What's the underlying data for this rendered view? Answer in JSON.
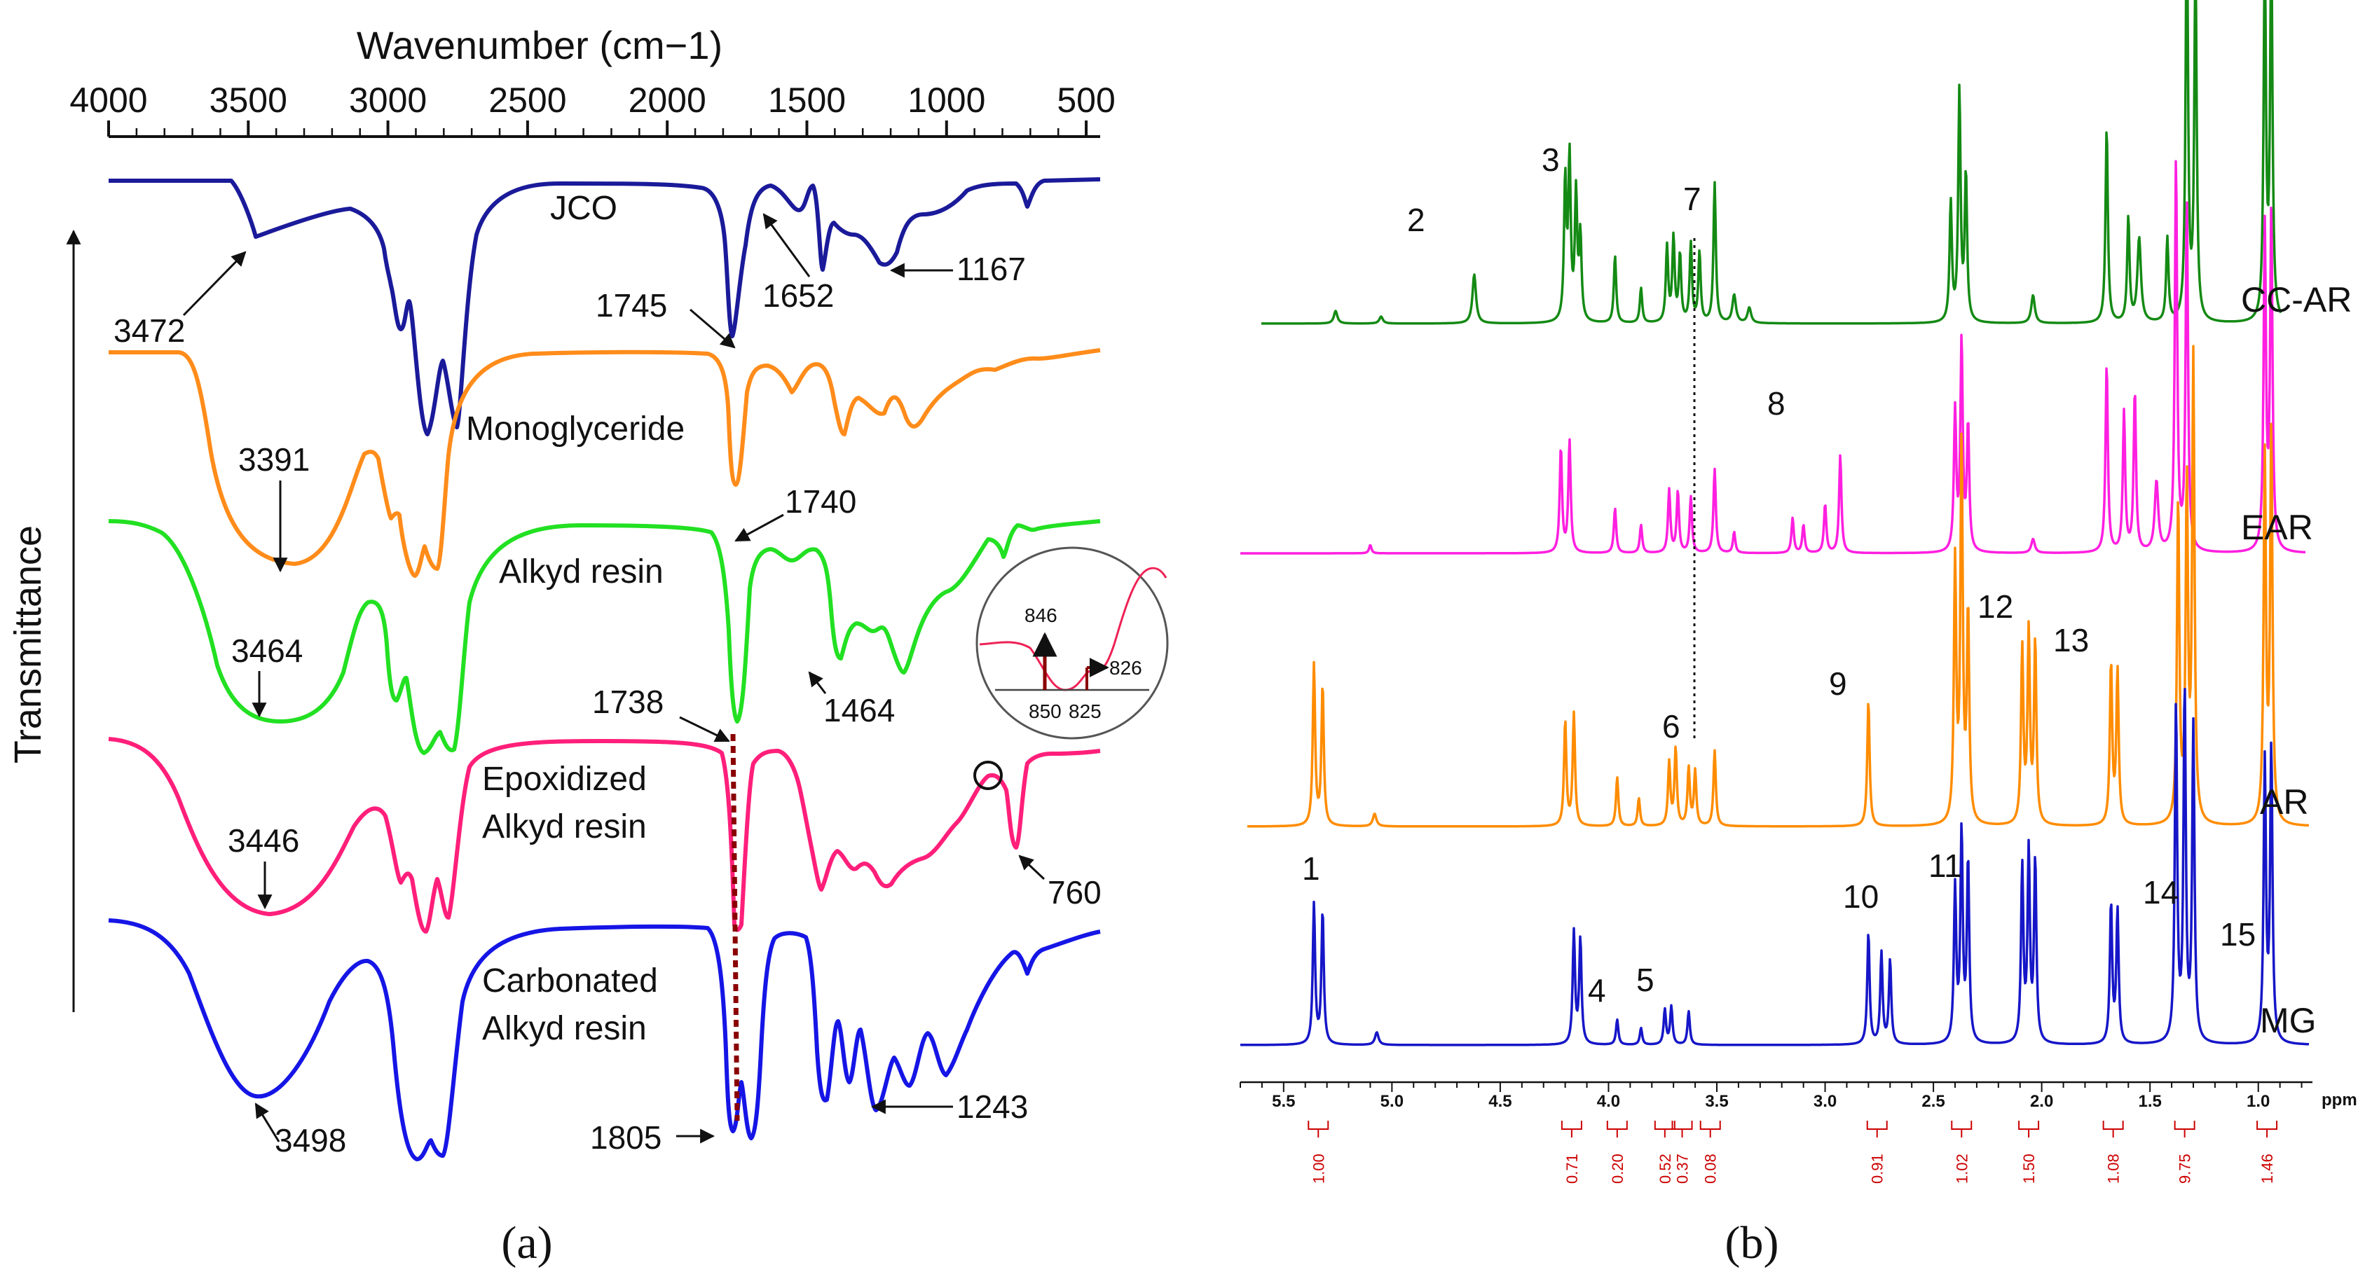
{
  "panel_labels": {
    "a": "(a)",
    "b": "(b)"
  },
  "chart_data": [
    {
      "type": "line",
      "title": "",
      "xlabel": "Wavenumber (cm−1)",
      "ylabel": "Transmittance",
      "xlim": [
        4000,
        450
      ],
      "x_reversed": true,
      "xticks": [
        "4000",
        "3500",
        "3000",
        "2500",
        "2000",
        "1500",
        "1000",
        "500"
      ],
      "series": [
        {
          "name": "JCO",
          "color": "#1a1a9a",
          "label_lines": [
            "JCO"
          ]
        },
        {
          "name": "Monoglyceride",
          "color": "#ff8c1a",
          "label_lines": [
            "Monoglyceride"
          ]
        },
        {
          "name": "Alkyd resin",
          "color": "#22e022",
          "label_lines": [
            "Alkyd resin"
          ]
        },
        {
          "name": "Epoxidized Alkyd resin",
          "color": "#ff1f7a",
          "label_lines": [
            "Epoxidized",
            "Alkyd resin"
          ]
        },
        {
          "name": "Carbonated Alkyd resin",
          "color": "#1515e6",
          "label_lines": [
            "Carbonated",
            "Alkyd resin"
          ]
        }
      ],
      "annotations": [
        "3472",
        "1745",
        "1652",
        "1167",
        "3391",
        "1740",
        "3464",
        "1464",
        "1738",
        "3446",
        "760",
        "3498",
        "1805",
        "1243"
      ],
      "inset": {
        "peak": "846",
        "shoulder": "826",
        "ticks": [
          "850",
          "825"
        ]
      }
    },
    {
      "type": "line",
      "title": "",
      "xlabel": "ppm",
      "xlim": [
        5.7,
        0.75
      ],
      "x_reversed": true,
      "xticks": [
        "5.5",
        "5.0",
        "4.5",
        "4.0",
        "3.5",
        "3.0",
        "2.5",
        "2.0",
        "1.5",
        "1.0"
      ],
      "series": [
        {
          "name": "CC-AR",
          "color": "#148a14"
        },
        {
          "name": "EAR",
          "color": "#ff1fe0"
        },
        {
          "name": "AR",
          "color": "#ff8c00"
        },
        {
          "name": "MG",
          "color": "#1616c8"
        }
      ],
      "peak_labels": [
        "1",
        "2",
        "3",
        "4",
        "5",
        "6",
        "7",
        "8",
        "9",
        "10",
        "11",
        "12",
        "13",
        "14",
        "15"
      ],
      "integrals": [
        "1.00",
        "0.71",
        "0.20",
        "0.52",
        "0.37",
        "0.08",
        "0.91",
        "1.02",
        "1.50",
        "1.08",
        "9.75",
        "1.46"
      ]
    }
  ]
}
